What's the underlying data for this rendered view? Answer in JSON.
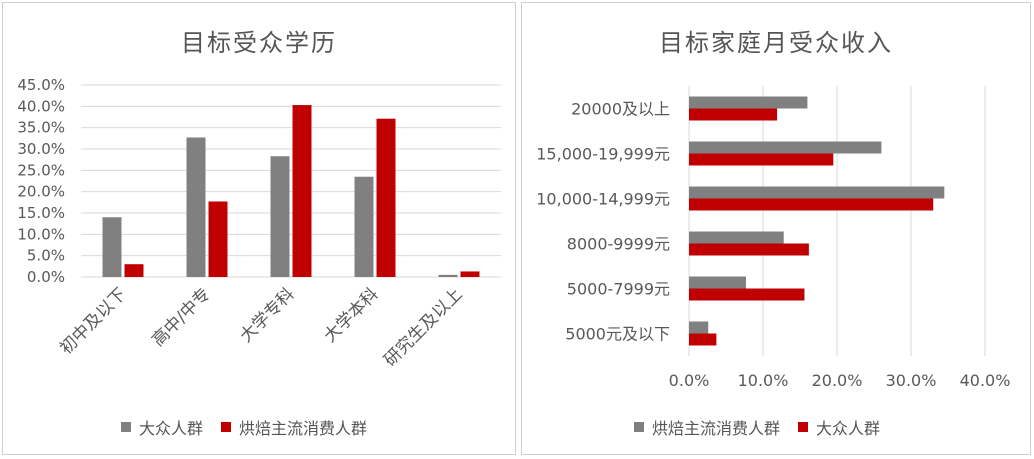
{
  "colors": {
    "gray": "#808080",
    "red": "#C00000",
    "grid": "#d9d9d9"
  },
  "chart_data": [
    {
      "type": "bar",
      "title": "目标受众学历",
      "categories": [
        "初中及以下",
        "高中/中专",
        "大学专科",
        "大学本科",
        "研究生及以上"
      ],
      "series": [
        {
          "name": "大众人群",
          "values": [
            14.0,
            32.7,
            28.3,
            23.5,
            0.5
          ]
        },
        {
          "name": "烘焙主流消费人群",
          "values": [
            3.0,
            17.7,
            40.3,
            37.1,
            1.3
          ]
        }
      ],
      "yticks": [
        "45.0%",
        "40.0%",
        "35.0%",
        "30.0%",
        "25.0%",
        "20.0%",
        "15.0%",
        "10.0%",
        "5.0%",
        "0.0%"
      ],
      "ylim": [
        0,
        45
      ],
      "grid": true,
      "legend": "bottom"
    },
    {
      "type": "bar",
      "orientation": "horizontal",
      "title": "目标家庭月受众收入",
      "categories": [
        "20000及以上",
        "15,000-19,999元",
        "10,000-14,999元",
        "8000-9999元",
        "5000-7999元",
        "5000元及以下"
      ],
      "series": [
        {
          "name": "烘焙主流消费人群",
          "values": [
            16.0,
            26.0,
            34.5,
            12.8,
            7.7,
            2.6
          ]
        },
        {
          "name": "大众人群",
          "values": [
            11.9,
            19.5,
            33.0,
            16.2,
            15.6,
            3.7
          ]
        }
      ],
      "xticks": [
        "0.0%",
        "10.0%",
        "20.0%",
        "30.0%",
        "40.0%"
      ],
      "xlim": [
        0,
        40
      ],
      "grid": true,
      "legend": "bottom"
    }
  ]
}
